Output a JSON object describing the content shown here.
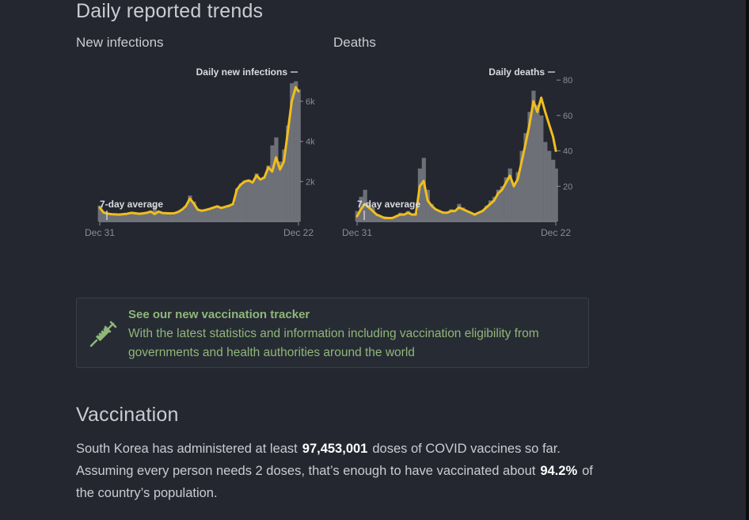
{
  "trends": {
    "title": "Daily reported trends"
  },
  "charts": {
    "infections": {
      "subtitle": "New infections",
      "series_label": "Daily new infections",
      "average_label": "7-day average",
      "x_start": "Dec 31",
      "x_end": "Dec 22",
      "y_ticks": [
        "2k",
        "4k",
        "6k"
      ]
    },
    "deaths": {
      "subtitle": "Deaths",
      "series_label": "Daily deaths",
      "average_label": "7-day average",
      "x_start": "Dec 31",
      "x_end": "Dec 22",
      "y_ticks": [
        "20",
        "40",
        "60",
        "80"
      ]
    }
  },
  "colors": {
    "line": "#f0be1e",
    "bars": "#6d7077",
    "axis": "#8a8d94",
    "tracker_text": "#8fb77a"
  },
  "chart_data": [
    {
      "type": "area",
      "title": "New infections",
      "x_range": [
        "Dec 31",
        "Dec 22"
      ],
      "ylim": [
        0,
        7500
      ],
      "y_ticks": [
        2000,
        4000,
        6000
      ],
      "series": [
        {
          "name": "Daily new infections",
          "x": [
            0,
            7,
            14,
            21,
            28,
            35,
            42,
            49,
            56,
            63,
            70,
            77,
            84,
            91,
            98,
            105,
            112,
            119,
            126,
            133,
            140,
            147,
            154,
            161,
            168,
            175,
            182,
            189,
            196,
            203,
            210,
            217,
            224,
            231,
            238,
            245,
            252,
            259,
            266,
            273,
            280,
            287,
            294,
            301,
            308,
            315,
            322,
            329,
            336,
            343,
            350,
            355
          ],
          "values": [
            800,
            500,
            420,
            380,
            370,
            360,
            380,
            400,
            460,
            430,
            400,
            420,
            450,
            520,
            800,
            520,
            440,
            430,
            420,
            430,
            500,
            620,
            800,
            1300,
            1000,
            620,
            560,
            600,
            650,
            720,
            780,
            700,
            760,
            800,
            900,
            1650,
            1900,
            2050,
            2100,
            2000,
            2400,
            2150,
            2250,
            2800,
            3800,
            4200,
            3000,
            3600,
            4800,
            6900,
            7000,
            6600
          ]
        },
        {
          "name": "7-day average",
          "x": [
            0,
            7,
            14,
            21,
            28,
            35,
            42,
            49,
            56,
            63,
            70,
            77,
            84,
            91,
            98,
            105,
            112,
            119,
            126,
            133,
            140,
            147,
            154,
            161,
            168,
            175,
            182,
            189,
            196,
            203,
            210,
            217,
            224,
            231,
            238,
            245,
            252,
            259,
            266,
            273,
            280,
            287,
            294,
            301,
            308,
            315,
            322,
            329,
            336,
            343,
            350,
            355
          ],
          "values": [
            700,
            450,
            400,
            370,
            360,
            350,
            370,
            390,
            440,
            420,
            390,
            410,
            440,
            500,
            380,
            500,
            430,
            420,
            410,
            420,
            480,
            600,
            780,
            1150,
            900,
            600,
            540,
            580,
            630,
            700,
            760,
            680,
            740,
            790,
            880,
            1600,
            1850,
            2000,
            2050,
            1950,
            2300,
            2100,
            2200,
            2700,
            2500,
            3200,
            2600,
            3000,
            4500,
            6000,
            6700,
            6500
          ]
        }
      ]
    },
    {
      "type": "area",
      "title": "Deaths",
      "x_range": [
        "Dec 31",
        "Dec 22"
      ],
      "ylim": [
        0,
        85
      ],
      "y_ticks": [
        20,
        40,
        60,
        80
      ],
      "series": [
        {
          "name": "Daily deaths",
          "x": [
            0,
            7,
            14,
            21,
            28,
            35,
            42,
            49,
            56,
            63,
            70,
            77,
            84,
            91,
            98,
            105,
            112,
            119,
            126,
            133,
            140,
            147,
            154,
            161,
            168,
            175,
            182,
            189,
            196,
            203,
            210,
            217,
            224,
            231,
            238,
            245,
            252,
            259,
            266,
            273,
            280,
            287,
            294,
            301,
            308,
            315,
            322,
            329,
            336,
            343,
            350,
            355
          ],
          "values": [
            6,
            14,
            18,
            10,
            8,
            4,
            3,
            3,
            2,
            2,
            3,
            5,
            4,
            6,
            4,
            5,
            30,
            36,
            18,
            10,
            7,
            6,
            5,
            5,
            7,
            6,
            10,
            8,
            6,
            5,
            4,
            5,
            6,
            9,
            12,
            14,
            18,
            20,
            25,
            30,
            22,
            28,
            40,
            50,
            62,
            74,
            66,
            60,
            45,
            40,
            35,
            30
          ]
        },
        {
          "name": "7-day average",
          "x": [
            0,
            7,
            14,
            21,
            28,
            35,
            42,
            49,
            56,
            63,
            70,
            77,
            84,
            91,
            98,
            105,
            112,
            119,
            126,
            133,
            140,
            147,
            154,
            161,
            168,
            175,
            182,
            189,
            196,
            203,
            210,
            217,
            224,
            231,
            238,
            245,
            252,
            259,
            266,
            273,
            280,
            287,
            294,
            301,
            308,
            315,
            322,
            329,
            336,
            343,
            350,
            355
          ],
          "values": [
            3,
            7,
            10,
            8,
            6,
            4,
            3,
            2,
            2,
            2,
            3,
            4,
            4,
            5,
            4,
            4,
            20,
            23,
            12,
            9,
            7,
            6,
            5,
            5,
            6,
            6,
            8,
            7,
            6,
            5,
            4,
            5,
            6,
            8,
            10,
            12,
            16,
            18,
            22,
            26,
            20,
            24,
            34,
            44,
            55,
            68,
            62,
            70,
            62,
            55,
            48,
            40
          ]
        }
      ]
    }
  ],
  "tracker": {
    "title": "See our new vaccination tracker",
    "line1": "With the latest statistics and information including vaccination eligibility from",
    "line2": "governments and health authorities around the world",
    "icon": "syringe-icon"
  },
  "vaccination": {
    "title": "Vaccination",
    "line1_pre": "South Korea has administered at least",
    "doses": "97,453,001",
    "line1_post": "doses of COVID vaccines so far.",
    "line2_pre": "Assuming every person needs 2 doses, that’s enough to have vaccinated about",
    "percent": "94.2%",
    "line2_post": "of",
    "line3": "the country’s population."
  }
}
